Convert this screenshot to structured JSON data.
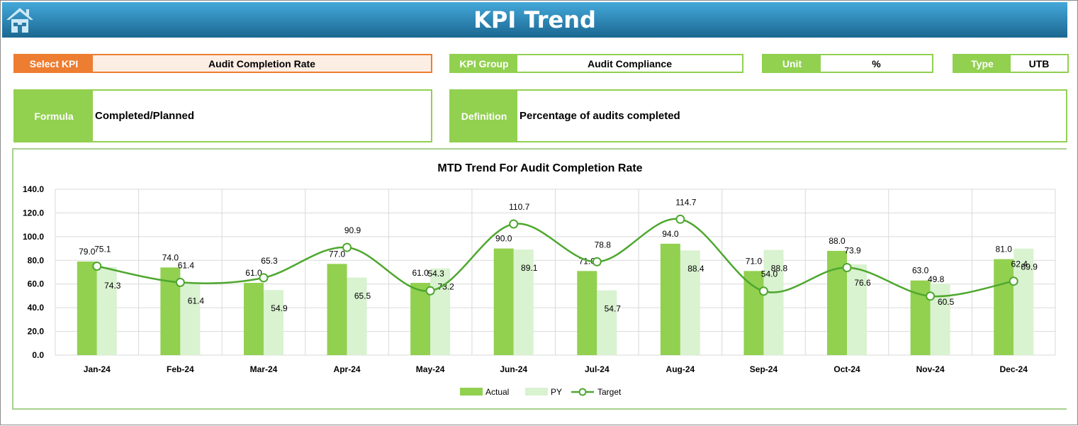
{
  "header": {
    "title": "KPI Trend",
    "home_icon": "home-icon"
  },
  "select_kpi": {
    "label": "Select KPI",
    "value": "Audit Completion Rate"
  },
  "kpi_group": {
    "label": "KPI Group",
    "value": "Audit Compliance"
  },
  "unit": {
    "label": "Unit",
    "value": "%"
  },
  "type": {
    "label": "Type",
    "value": "UTB"
  },
  "formula": {
    "label": "Formula",
    "value": "Completed/Planned"
  },
  "definition": {
    "label": "Definition",
    "value": "Percentage of audits completed"
  },
  "colors": {
    "actual": "#92d050",
    "py": "#d9f2d0",
    "target": "#4ea72e",
    "accent": "#ed7d31",
    "header": "#1b6791"
  },
  "chart_data": {
    "type": "bar",
    "title": "MTD Trend For Audit Completion Rate",
    "categories": [
      "Jan-24",
      "Feb-24",
      "Mar-24",
      "Apr-24",
      "May-24",
      "Jun-24",
      "Jul-24",
      "Aug-24",
      "Sep-24",
      "Oct-24",
      "Nov-24",
      "Dec-24"
    ],
    "ylim": [
      0,
      140
    ],
    "yticks": [
      "0.0",
      "20.0",
      "40.0",
      "60.0",
      "80.0",
      "100.0",
      "120.0",
      "140.0"
    ],
    "grid": true,
    "legend": "bottom",
    "series": [
      {
        "name": "Actual",
        "type": "bar",
        "values": [
          79.0,
          74.0,
          61.0,
          77.0,
          61.0,
          90.0,
          71.0,
          94.0,
          71.0,
          88.0,
          63.0,
          81.0
        ]
      },
      {
        "name": "PY",
        "type": "bar",
        "values": [
          74.3,
          61.4,
          54.9,
          65.5,
          73.2,
          89.1,
          54.7,
          88.4,
          88.8,
          76.6,
          60.5,
          89.9
        ]
      },
      {
        "name": "Target",
        "type": "line",
        "values": [
          75.1,
          61.4,
          65.3,
          90.9,
          54.3,
          110.7,
          78.8,
          114.7,
          54.0,
          73.9,
          49.8,
          62.4
        ]
      }
    ]
  }
}
